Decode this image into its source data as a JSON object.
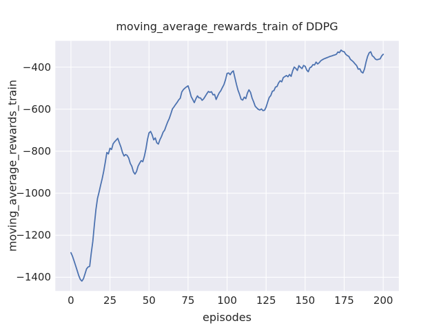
{
  "figure": {
    "background_color": "#ffffff",
    "axes_background_color": "#eaeaf2",
    "grid_color": "#ffffff",
    "text_color": "#262626"
  },
  "chart_data": {
    "type": "line",
    "title": "moving_average_rewards_train of DDPG",
    "xlabel": "episodes",
    "ylabel": "moving_average_rewards_train",
    "xlim": [
      -10,
      210
    ],
    "ylim": [
      -1465,
      -275
    ],
    "grid": true,
    "legend": false,
    "x_ticks": [
      0,
      25,
      50,
      75,
      100,
      125,
      150,
      175,
      200
    ],
    "x_tick_labels": [
      "0",
      "25",
      "50",
      "75",
      "100",
      "125",
      "150",
      "175",
      "200"
    ],
    "y_ticks": [
      -400,
      -600,
      -800,
      -1000,
      -1200,
      -1400
    ],
    "y_tick_labels": [
      "−400",
      "−600",
      "−800",
      "−1000",
      "−1200",
      "−1400"
    ],
    "series": [
      {
        "name": "moving_average_rewards_train",
        "color": "#4c72b0",
        "line_width": 1.8,
        "x_start": 0,
        "x_step": 1,
        "y": [
          -1283,
          -1300,
          -1322,
          -1345,
          -1368,
          -1392,
          -1410,
          -1418,
          -1407,
          -1384,
          -1360,
          -1351,
          -1348,
          -1285,
          -1230,
          -1150,
          -1078,
          -1025,
          -995,
          -962,
          -931,
          -895,
          -852,
          -806,
          -813,
          -786,
          -792,
          -765,
          -755,
          -747,
          -739,
          -760,
          -780,
          -806,
          -823,
          -816,
          -820,
          -833,
          -858,
          -872,
          -898,
          -909,
          -897,
          -871,
          -857,
          -845,
          -850,
          -825,
          -790,
          -745,
          -713,
          -706,
          -722,
          -746,
          -737,
          -760,
          -766,
          -745,
          -730,
          -710,
          -700,
          -679,
          -660,
          -644,
          -622,
          -599,
          -589,
          -578,
          -568,
          -556,
          -548,
          -518,
          -507,
          -500,
          -494,
          -489,
          -512,
          -540,
          -554,
          -569,
          -551,
          -537,
          -546,
          -547,
          -558,
          -551,
          -539,
          -527,
          -516,
          -520,
          -517,
          -532,
          -530,
          -554,
          -537,
          -522,
          -512,
          -497,
          -483,
          -460,
          -430,
          -428,
          -436,
          -424,
          -418,
          -450,
          -482,
          -510,
          -530,
          -553,
          -557,
          -543,
          -550,
          -524,
          -508,
          -520,
          -547,
          -565,
          -586,
          -594,
          -601,
          -604,
          -599,
          -607,
          -605,
          -590,
          -566,
          -544,
          -535,
          -515,
          -512,
          -495,
          -492,
          -475,
          -465,
          -470,
          -450,
          -445,
          -440,
          -446,
          -435,
          -444,
          -418,
          -400,
          -406,
          -416,
          -393,
          -401,
          -407,
          -392,
          -396,
          -414,
          -422,
          -403,
          -399,
          -388,
          -390,
          -376,
          -385,
          -379,
          -370,
          -365,
          -361,
          -358,
          -355,
          -352,
          -349,
          -347,
          -344,
          -342,
          -339,
          -328,
          -331,
          -319,
          -325,
          -327,
          -339,
          -345,
          -349,
          -363,
          -369,
          -376,
          -385,
          -393,
          -410,
          -408,
          -423,
          -428,
          -409,
          -376,
          -349,
          -332,
          -327,
          -346,
          -352,
          -362,
          -365,
          -363,
          -361,
          -347,
          -339
        ]
      }
    ]
  }
}
